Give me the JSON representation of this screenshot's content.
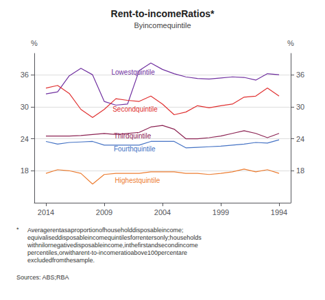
{
  "chart_data": {
    "type": "line",
    "title": "Rent-to-incomeRatios*",
    "subtitle": "Byincomequintile",
    "x": [
      1994,
      1995,
      1996,
      1997,
      1998,
      1999,
      2000,
      2001,
      2002,
      2003,
      2004,
      2005,
      2006,
      2007,
      2008,
      2009,
      2010,
      2011,
      2012,
      2013,
      2014
    ],
    "series": [
      {
        "color": "#7030a0",
        "values": [
          36.0,
          36.2,
          35.0,
          35.5,
          35.6,
          35.4,
          35.2,
          35.3,
          35.6,
          36.2,
          37.0,
          38.2,
          36.8,
          30.5,
          30.3,
          31.0,
          36.0,
          37.2,
          35.8,
          32.8,
          32.4
        ]
      },
      {
        "color": "#e03030",
        "values": [
          32.0,
          33.5,
          32.0,
          31.8,
          30.5,
          30.2,
          29.8,
          30.2,
          29.0,
          28.5,
          30.5,
          32.0,
          31.0,
          31.2,
          31.5,
          29.5,
          28.0,
          29.5,
          32.5,
          34.0,
          33.5
        ]
      },
      {
        "color": "#8b2252",
        "values": [
          25.0,
          24.2,
          25.0,
          25.5,
          25.0,
          24.5,
          24.2,
          24.0,
          24.0,
          25.8,
          26.5,
          26.2,
          25.2,
          25.0,
          24.8,
          25.0,
          24.8,
          24.6,
          24.5,
          24.5,
          24.5
        ]
      },
      {
        "color": "#4472c4",
        "values": [
          23.8,
          23.2,
          23.3,
          23.0,
          22.8,
          22.6,
          22.5,
          22.4,
          22.3,
          23.5,
          23.5,
          23.5,
          22.8,
          22.8,
          22.8,
          22.8,
          23.5,
          23.4,
          23.3,
          23.0,
          23.5
        ]
      },
      {
        "color": "#ed7d31",
        "values": [
          17.5,
          18.2,
          17.8,
          18.3,
          17.8,
          17.5,
          17.3,
          17.5,
          17.5,
          17.8,
          17.8,
          17.8,
          17.5,
          17.5,
          17.5,
          17.3,
          15.5,
          17.5,
          18.0,
          18.2,
          17.5
        ]
      }
    ],
    "xlim": [
      2015,
      1993
    ],
    "xticks": [
      2014,
      2009,
      2004,
      1999,
      1994
    ],
    "ylim": [
      12,
      40
    ],
    "yticks": [
      18,
      24,
      30,
      36
    ],
    "y2lim": [
      12,
      40
    ],
    "y2ticks": [
      18,
      24,
      30,
      36
    ],
    "ylabel": "%",
    "y2label": "%",
    "grid": true,
    "annotations": [
      {
        "text": "Lowestquintile",
        "x": 2008.5,
        "y": 35.6,
        "color": "#7030a0"
      },
      {
        "text": "Secondquintile",
        "x": 2008.4,
        "y": 28.6,
        "color": "#e03030"
      },
      {
        "text": "Thirdquintile",
        "x": 2008.3,
        "y": 23.6,
        "color": "#8b2252"
      },
      {
        "text": "Fourthquintile",
        "x": 2008.3,
        "y": 21.2,
        "color": "#4472c4"
      },
      {
        "text": "Highestquintile",
        "x": 2008.2,
        "y": 15.3,
        "color": "#ed7d31"
      }
    ],
    "footnote": {
      "marker": "*",
      "lines": [
        "Averagerentasaproportionofhouseholddisposableincome;",
        "equivaliseddisposableincomequintilesforrentersonly;households",
        "withnilornegativedisposableincome,inthefirstandsecondincome",
        "percentiles,orwitharent-to-incomeratioabove100percentare",
        "excludedfromthesample."
      ]
    },
    "sources": "Sources: ABS;RBA"
  }
}
